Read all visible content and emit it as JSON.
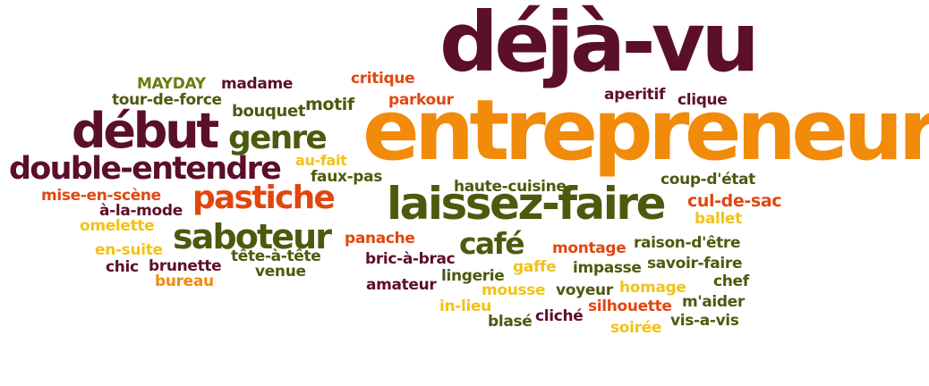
{
  "palette": {
    "maroon": "#5c0f2a",
    "olive": "#4d5a0e",
    "orange": "#f28a0a",
    "red_orange": "#e2460f",
    "yellow": "#f2c21a"
  },
  "words": [
    {
      "text": "déjà-vu",
      "color": "#5c0f2a"
    },
    {
      "text": "entrepreneur",
      "color": "#f28a0a"
    },
    {
      "text": "laissez-faire",
      "color": "#4d5a0e"
    },
    {
      "text": "début",
      "color": "#5c0f2a"
    },
    {
      "text": "double-entendre",
      "color": "#5c0f2a"
    },
    {
      "text": "genre",
      "color": "#4d5a0e"
    },
    {
      "text": "pastiche",
      "color": "#e2460f"
    },
    {
      "text": "saboteur",
      "color": "#4d5a0e"
    },
    {
      "text": "café",
      "color": "#4d5a0e"
    },
    {
      "text": "MAYDAY",
      "color": "#6e7a12"
    },
    {
      "text": "madame",
      "color": "#5c0f2a"
    },
    {
      "text": "tour-de-force",
      "color": "#4d5a0e"
    },
    {
      "text": "bouquet",
      "color": "#4d5a0e"
    },
    {
      "text": "motif",
      "color": "#4d5a0e"
    },
    {
      "text": "critique",
      "color": "#e2460f"
    },
    {
      "text": "parkour",
      "color": "#e2460f"
    },
    {
      "text": "aperitif",
      "color": "#5c0f2a"
    },
    {
      "text": "clique",
      "color": "#5c0f2a"
    },
    {
      "text": "au-fait",
      "color": "#f2c21a"
    },
    {
      "text": "faux-pas",
      "color": "#4d5a0e"
    },
    {
      "text": "mise-en-scène",
      "color": "#e2460f"
    },
    {
      "text": "à-la-mode",
      "color": "#5c0f2a"
    },
    {
      "text": "omelette",
      "color": "#f2c21a"
    },
    {
      "text": "en-suite",
      "color": "#f2c21a"
    },
    {
      "text": "chic",
      "color": "#5c0f2a"
    },
    {
      "text": "brunette",
      "color": "#5c0f2a"
    },
    {
      "text": "bureau",
      "color": "#f28a0a"
    },
    {
      "text": "tête-à-tête",
      "color": "#4d5a0e"
    },
    {
      "text": "venue",
      "color": "#4d5a0e"
    },
    {
      "text": "haute-cuisine",
      "color": "#4d5a0e"
    },
    {
      "text": "coup-d'état",
      "color": "#4d5a0e"
    },
    {
      "text": "cul-de-sac",
      "color": "#e2460f"
    },
    {
      "text": "ballet",
      "color": "#f2c21a"
    },
    {
      "text": "panache",
      "color": "#e2460f"
    },
    {
      "text": "bric-à-brac",
      "color": "#5c0f2a"
    },
    {
      "text": "amateur",
      "color": "#5c0f2a"
    },
    {
      "text": "lingerie",
      "color": "#4d5a0e"
    },
    {
      "text": "in-lieu",
      "color": "#f2c21a"
    },
    {
      "text": "blasé",
      "color": "#4d5a0e"
    },
    {
      "text": "mousse",
      "color": "#f2c21a"
    },
    {
      "text": "gaffe",
      "color": "#f2c21a"
    },
    {
      "text": "montage",
      "color": "#e2460f"
    },
    {
      "text": "impasse",
      "color": "#4d5a0e"
    },
    {
      "text": "raison-d'être",
      "color": "#4d5a0e"
    },
    {
      "text": "savoir-faire",
      "color": "#4d5a0e"
    },
    {
      "text": "voyeur",
      "color": "#4d5a0e"
    },
    {
      "text": "homage",
      "color": "#f2c21a"
    },
    {
      "text": "chef",
      "color": "#4d5a0e"
    },
    {
      "text": "cliché",
      "color": "#5c0f2a"
    },
    {
      "text": "silhouette",
      "color": "#e2460f"
    },
    {
      "text": "m'aider",
      "color": "#4d5a0e"
    },
    {
      "text": "soirée",
      "color": "#f2c21a"
    },
    {
      "text": "vis-a-vis",
      "color": "#4d5a0e"
    }
  ]
}
